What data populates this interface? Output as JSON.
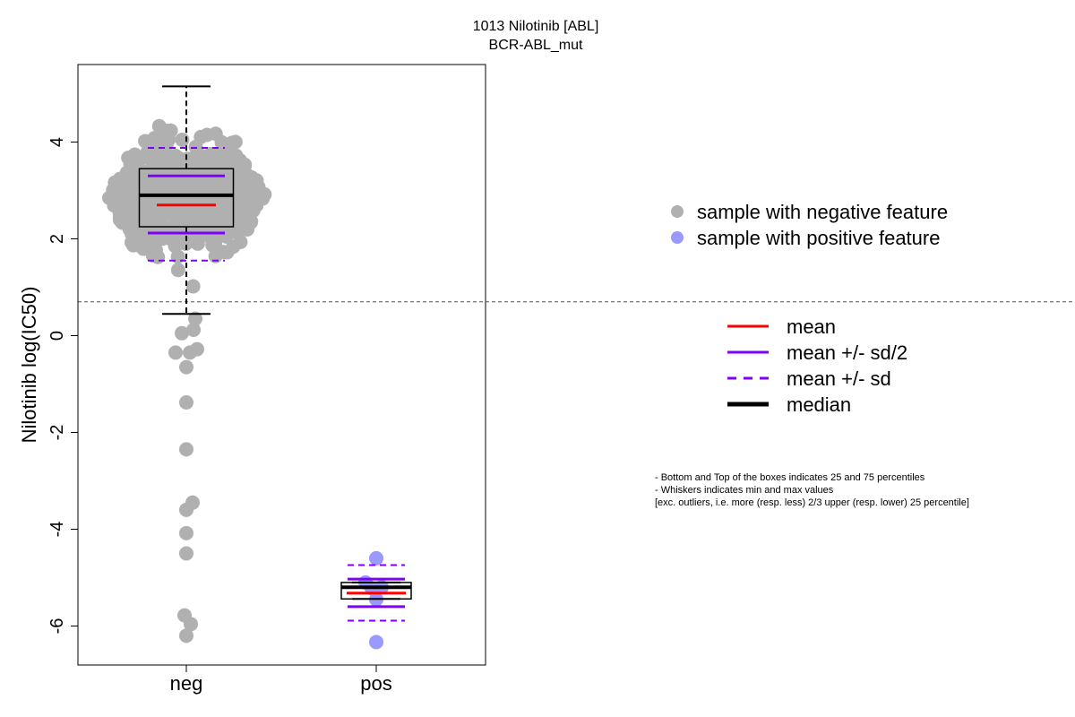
{
  "chart_data": {
    "type": "scatter",
    "title_line1": "1013 Nilotinib [ABL]",
    "title_line2": "BCR-ABL_mut",
    "ylabel": "Nilotinib log(IC50)",
    "xlabel": "",
    "categories": [
      "neg",
      "pos"
    ],
    "ylim": [
      -6.8,
      5.5
    ],
    "yticks": [
      -6,
      -4,
      -2,
      0,
      2,
      4
    ],
    "threshold_line": 0.7,
    "groups": [
      {
        "name": "neg",
        "color": "#b0b0b0",
        "box": {
          "q1": 2.25,
          "median": 2.9,
          "q3": 3.45,
          "whisker_low": 0.45,
          "whisker_high": 5.15
        },
        "stats": {
          "mean": 2.7,
          "mean_plus_half_sd": 3.3,
          "mean_minus_half_sd": 2.12,
          "mean_plus_sd": 3.88,
          "mean_minus_sd": 1.55
        },
        "low_points": [
          [
            0.1,
            0.35
          ],
          [
            -0.05,
            0.05
          ],
          [
            0.08,
            0.12
          ],
          [
            -0.12,
            -0.35
          ],
          [
            0.04,
            -0.35
          ],
          [
            0.12,
            -0.28
          ],
          [
            0.0,
            -0.65
          ],
          [
            0.0,
            -1.38
          ],
          [
            0.0,
            -2.35
          ],
          [
            0.0,
            -3.6
          ],
          [
            0.07,
            -3.45
          ],
          [
            0.0,
            -4.08
          ],
          [
            0.0,
            -4.5
          ],
          [
            -0.02,
            -5.78
          ],
          [
            0.05,
            -5.96
          ],
          [
            0.0,
            -6.2
          ]
        ]
      },
      {
        "name": "pos",
        "color": "#9999ff",
        "box": {
          "q1": -5.44,
          "median": -5.2,
          "q3": -5.1,
          "whisker_low": -5.44,
          "whisker_high": -5.1
        },
        "stats": {
          "mean": -5.32,
          "mean_plus_half_sd": -5.03,
          "mean_minus_half_sd": -5.6,
          "mean_plus_sd": -4.74,
          "mean_minus_sd": -5.89
        },
        "points": [
          [
            0.0,
            -4.6
          ],
          [
            -0.12,
            -5.1
          ],
          [
            -0.05,
            -5.22
          ],
          [
            0.06,
            -5.2
          ],
          [
            0.0,
            -5.45
          ],
          [
            0.0,
            -6.33
          ]
        ]
      }
    ],
    "legend_points": [
      {
        "label": "sample with negative feature",
        "color": "#b0b0b0"
      },
      {
        "label": "sample with positive feature",
        "color": "#9999ff"
      }
    ],
    "legend_lines": [
      {
        "label": "mean",
        "color": "#ff0000",
        "style": "solid"
      },
      {
        "label": "mean +/- sd/2",
        "color": "#8000ff",
        "style": "solid"
      },
      {
        "label": "mean +/- sd",
        "color": "#8000ff",
        "style": "dashed"
      },
      {
        "label": "median",
        "color": "#000000",
        "style": "solid-thick"
      }
    ],
    "notes": [
      "- Bottom and Top of the boxes indicates 25 and 75 percentiles",
      "- Whiskers indicates min and max values",
      "[exc. outliers, i.e. more (resp. less) 2/3 upper (resp. lower) 25 percentile]"
    ]
  }
}
